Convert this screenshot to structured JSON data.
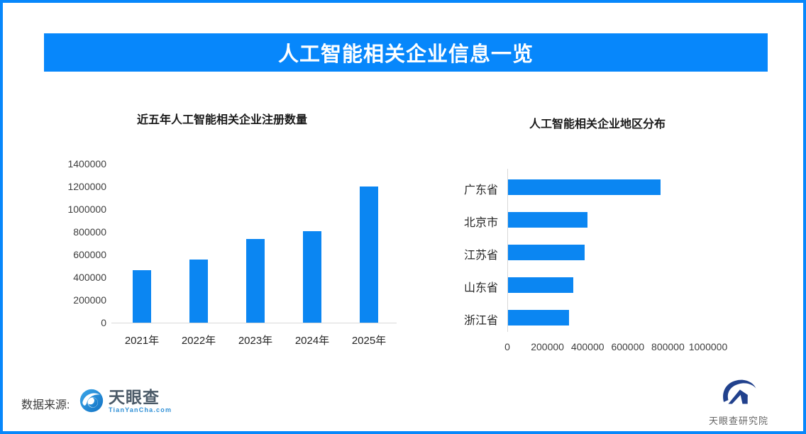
{
  "header": {
    "title": "人工智能相关企业信息一览"
  },
  "chart_data": [
    {
      "type": "bar",
      "title": "近五年人工智能相关企业注册数量",
      "categories": [
        "2021年",
        "2022年",
        "2023年",
        "2024年",
        "2025年"
      ],
      "values": [
        465000,
        555000,
        735000,
        805000,
        1200000
      ],
      "xlabel": "",
      "ylabel": "",
      "ylim": [
        0,
        1400000
      ],
      "yticks": [
        0,
        200000,
        400000,
        600000,
        800000,
        1000000,
        1200000,
        1400000
      ],
      "grid": false,
      "legend": "none",
      "bar_color": "#0B86F2"
    },
    {
      "type": "bar-horizontal",
      "title": "人工智能相关企业地区分布",
      "categories": [
        "广东省",
        "北京市",
        "江苏省",
        "山东省",
        "浙江省"
      ],
      "values": [
        760000,
        395000,
        380000,
        325000,
        305000
      ],
      "xlabel": "",
      "ylabel": "",
      "xlim": [
        0,
        1000000
      ],
      "xticks": [
        0,
        200000,
        400000,
        600000,
        800000,
        1000000
      ],
      "grid": false,
      "legend": "none",
      "bar_color": "#0B86F2"
    }
  ],
  "footer": {
    "source_label": "数据来源:",
    "tianyancha": {
      "name": "天眼查",
      "domain": "TianYanCha.com"
    },
    "research": {
      "name": "天眼查研究院"
    }
  },
  "colors": {
    "accent": "#0787FB",
    "bar": "#0B86F2",
    "axis_line": "#D9D9D9",
    "tick_text": "#3D3D3D",
    "banner_text": "#FFFFFF",
    "wordmark_text": "#4B5A68",
    "domain_text": "#2E8FD6",
    "research_text": "#666666",
    "logo_navy": "#21418D",
    "logo_blue": "#2191D9"
  }
}
